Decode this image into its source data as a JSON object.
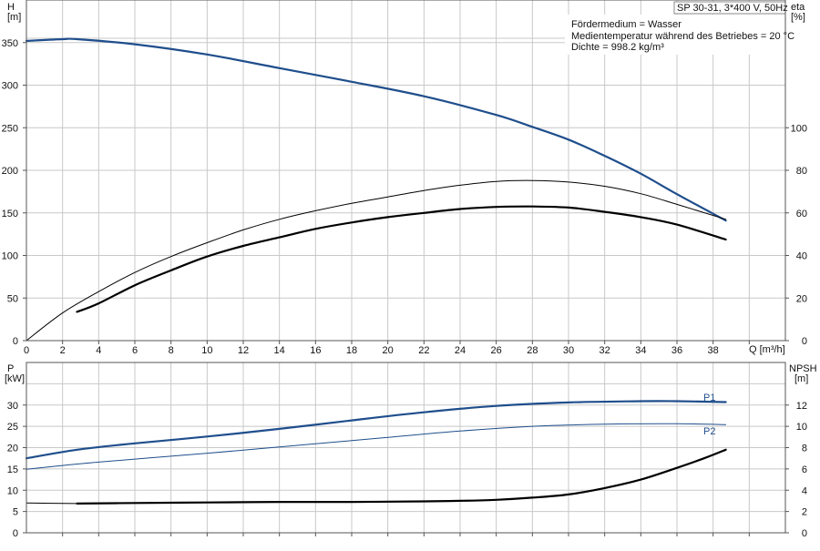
{
  "colors": {
    "pump_blue": "#1f4e8c",
    "black": "#000000",
    "grid": "#c8c8c8"
  },
  "chart_data": [
    {
      "type": "line",
      "name": "performance",
      "header_box": "SP 30-31, 3*400 V, 50Hz",
      "annotations": [
        "Fördermedium = Wasser",
        "Medientemperatur während des Betriebes = 20 °C",
        "Dichte = 998.2 kg/m³"
      ],
      "left_axis": {
        "label": "H",
        "unit": "[m]",
        "range": [
          0,
          400
        ],
        "ticks": [
          0,
          50,
          100,
          150,
          200,
          250,
          300,
          350
        ]
      },
      "right_axis": {
        "label": "eta",
        "unit": "[%]",
        "range": [
          0,
          160
        ],
        "ticks": [
          0,
          20,
          40,
          60,
          80,
          100
        ]
      },
      "x_axis": {
        "label": "Q [m³/h]",
        "range": [
          0,
          42
        ],
        "ticks": [
          0,
          2,
          4,
          6,
          8,
          10,
          12,
          14,
          16,
          18,
          20,
          22,
          24,
          26,
          28,
          30,
          32,
          34,
          36,
          38
        ]
      },
      "grid": true,
      "series": [
        {
          "role": "H",
          "axis": "left",
          "color": "#1f4e8c",
          "width": 2.2,
          "x": [
            0,
            2,
            2.8,
            6,
            10,
            14,
            18,
            22,
            26,
            28,
            30,
            32,
            34,
            36,
            38.7
          ],
          "y": [
            352,
            354,
            354,
            348,
            336,
            320,
            304,
            287,
            265,
            251,
            236,
            217,
            196,
            172,
            141
          ]
        },
        {
          "role": "eta_thin",
          "axis": "right",
          "color": "#000000",
          "width": 1,
          "x": [
            0,
            2,
            4,
            6,
            8,
            10,
            12,
            14,
            16,
            18,
            20,
            22,
            24,
            26,
            28,
            30,
            32,
            34,
            36,
            38.7
          ],
          "y": [
            0,
            13,
            23,
            32,
            39.5,
            46,
            52,
            57,
            61,
            64.5,
            67.5,
            70.5,
            73,
            74.8,
            75.2,
            74.5,
            72.5,
            69,
            64,
            57
          ]
        },
        {
          "role": "eta_thick",
          "axis": "right",
          "color": "#000000",
          "width": 2.2,
          "x": [
            2.8,
            4,
            6,
            8,
            10,
            12,
            14,
            16,
            18,
            20,
            22,
            24,
            26,
            28,
            30,
            32,
            34,
            36,
            38.7
          ],
          "y": [
            13.5,
            17.5,
            26,
            33,
            39.5,
            44.5,
            48.5,
            52.5,
            55.5,
            58,
            60,
            61.8,
            62.8,
            63,
            62.5,
            60.5,
            58,
            54.5,
            47.5
          ]
        }
      ]
    },
    {
      "type": "line",
      "name": "power_npsh",
      "left_axis": {
        "label": "P",
        "unit": "[kW]",
        "range": [
          0,
          40
        ],
        "ticks": [
          0,
          5,
          10,
          15,
          20,
          25,
          30
        ]
      },
      "right_axis": {
        "label": "NPSH",
        "unit": "[m]",
        "range": [
          0,
          16
        ],
        "ticks": [
          0,
          2,
          4,
          6,
          8,
          10,
          12
        ]
      },
      "x_axis": {
        "range": [
          0,
          42
        ],
        "ticks": []
      },
      "grid": true,
      "series": [
        {
          "name": "P1",
          "axis": "left",
          "color": "#1f4e8c",
          "width": 2.2,
          "x": [
            0,
            2.8,
            6,
            10,
            14,
            18,
            22,
            26,
            30,
            34,
            36,
            38.7
          ],
          "y": [
            17.5,
            19.5,
            21,
            22.6,
            24.4,
            26.4,
            28.3,
            29.8,
            30.6,
            30.9,
            30.9,
            30.7
          ]
        },
        {
          "name": "P2",
          "axis": "left",
          "color": "#1f4e8c",
          "width": 1,
          "x": [
            0,
            2,
            4,
            8,
            12,
            16,
            20,
            24,
            28,
            32,
            36,
            38.7
          ],
          "y": [
            14.9,
            15.8,
            16.6,
            18,
            19.4,
            20.9,
            22.4,
            23.9,
            25,
            25.5,
            25.6,
            25.4
          ]
        },
        {
          "role": "NPSH",
          "axis": "right",
          "color": "#000000",
          "width": 1,
          "x": [
            0,
            2.8
          ],
          "y": [
            2.8,
            2.75
          ]
        },
        {
          "role": "NPSH_thick",
          "axis": "right",
          "color": "#000000",
          "width": 2.2,
          "x": [
            2.8,
            6,
            10,
            14,
            18,
            22,
            24,
            26,
            28,
            30,
            32,
            34,
            36,
            37.5,
            38.7
          ],
          "y": [
            2.75,
            2.8,
            2.85,
            2.9,
            2.9,
            2.95,
            3.0,
            3.1,
            3.3,
            3.6,
            4.2,
            5.0,
            6.1,
            7.0,
            7.8
          ]
        }
      ]
    }
  ]
}
